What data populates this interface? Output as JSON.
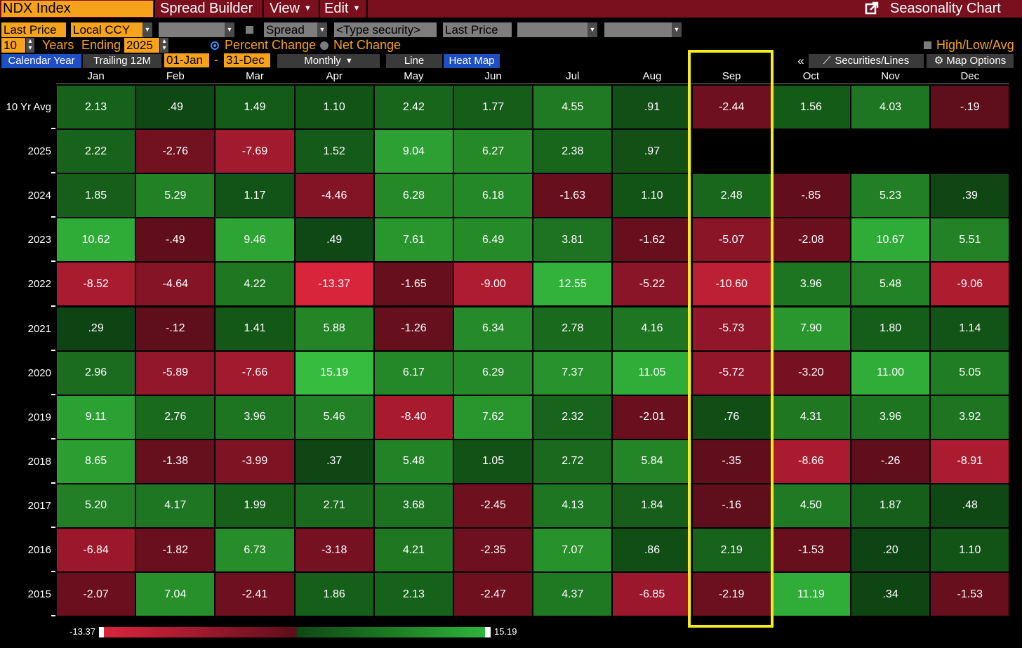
{
  "menubar": {
    "security": "NDX Index",
    "spread_builder": "Spread Builder",
    "view": "View",
    "edit": "Edit",
    "title": "Seasonality Chart",
    "export_icon": "export-icon"
  },
  "controls": {
    "price_field": "Last Price",
    "currency": "Local CCY",
    "spread_label": "Spread",
    "type_security": "<Type security>",
    "price_field_2": "Last Price",
    "years": "10",
    "years_label": "Years",
    "ending_label": "Ending",
    "ending_year": "2025",
    "percent_change": "Percent Change",
    "net_change": "Net Change",
    "high_low_avg": "High/Low/Avg"
  },
  "toolbar": {
    "calendar_year": "Calendar Year",
    "trailing_12m": "Trailing 12M",
    "start_date": "01-Jan",
    "dash": "-",
    "end_date": "31-Dec",
    "periodicity": "Monthly",
    "line": "Line",
    "heat_map": "Heat Map",
    "collapse": "«",
    "securities_lines": "Securities/Lines",
    "map_options": "Map Options"
  },
  "colors": {
    "brand_bar": "#7a0f1e",
    "accent_orange": "#f7a21b",
    "highlight_box": "#f7ec1e",
    "selected_tab": "#1f4fc4"
  },
  "heatmap": {
    "months": [
      "Jan",
      "Feb",
      "Mar",
      "Apr",
      "May",
      "Jun",
      "Jul",
      "Aug",
      "Sep",
      "Oct",
      "Nov",
      "Dec"
    ],
    "rows": [
      {
        "label": "10 Yr Avg",
        "values": [
          "2.13",
          ".49",
          "1.49",
          "1.10",
          "2.42",
          "1.77",
          "4.55",
          ".91",
          "-2.44",
          "1.56",
          "4.03",
          "-.19"
        ]
      },
      {
        "label": "2025",
        "values": [
          "2.22",
          "-2.76",
          "-7.69",
          "1.52",
          "9.04",
          "6.27",
          "2.38",
          ".97",
          "",
          "",
          "",
          ""
        ]
      },
      {
        "label": "2024",
        "values": [
          "1.85",
          "5.29",
          "1.17",
          "-4.46",
          "6.28",
          "6.18",
          "-1.63",
          "1.10",
          "2.48",
          "-.85",
          "5.23",
          ".39"
        ]
      },
      {
        "label": "2023",
        "values": [
          "10.62",
          "-.49",
          "9.46",
          ".49",
          "7.61",
          "6.49",
          "3.81",
          "-1.62",
          "-5.07",
          "-2.08",
          "10.67",
          "5.51"
        ]
      },
      {
        "label": "2022",
        "values": [
          "-8.52",
          "-4.64",
          "4.22",
          "-13.37",
          "-1.65",
          "-9.00",
          "12.55",
          "-5.22",
          "-10.60",
          "3.96",
          "5.48",
          "-9.06"
        ]
      },
      {
        "label": "2021",
        "values": [
          ".29",
          "-.12",
          "1.41",
          "5.88",
          "-1.26",
          "6.34",
          "2.78",
          "4.16",
          "-5.73",
          "7.90",
          "1.80",
          "1.14"
        ]
      },
      {
        "label": "2020",
        "values": [
          "2.96",
          "-5.89",
          "-7.66",
          "15.19",
          "6.17",
          "6.29",
          "7.37",
          "11.05",
          "-5.72",
          "-3.20",
          "11.00",
          "5.05"
        ]
      },
      {
        "label": "2019",
        "values": [
          "9.11",
          "2.76",
          "3.96",
          "5.46",
          "-8.40",
          "7.62",
          "2.32",
          "-2.01",
          ".76",
          "4.31",
          "3.96",
          "3.92"
        ]
      },
      {
        "label": "2018",
        "values": [
          "8.65",
          "-1.38",
          "-3.99",
          ".37",
          "5.48",
          "1.05",
          "2.72",
          "5.84",
          "-.35",
          "-8.66",
          "-.26",
          "-8.91"
        ]
      },
      {
        "label": "2017",
        "values": [
          "5.20",
          "4.17",
          "1.99",
          "2.71",
          "3.68",
          "-2.45",
          "4.13",
          "1.84",
          "-.16",
          "4.50",
          "1.87",
          ".48"
        ]
      },
      {
        "label": "2016",
        "values": [
          "-6.84",
          "-1.82",
          "6.73",
          "-3.18",
          "4.21",
          "-2.35",
          "7.07",
          ".86",
          "2.19",
          "-1.53",
          ".20",
          "1.10"
        ]
      },
      {
        "label": "2015",
        "values": [
          "-2.07",
          "7.04",
          "-2.41",
          "1.86",
          "2.13",
          "-2.47",
          "4.37",
          "-6.85",
          "-2.19",
          "11.19",
          ".34",
          "-1.53"
        ]
      }
    ],
    "min_value": -13.37,
    "max_value": 15.19
  },
  "legend": {
    "min_label": "-13.37",
    "max_label": "15.19"
  }
}
